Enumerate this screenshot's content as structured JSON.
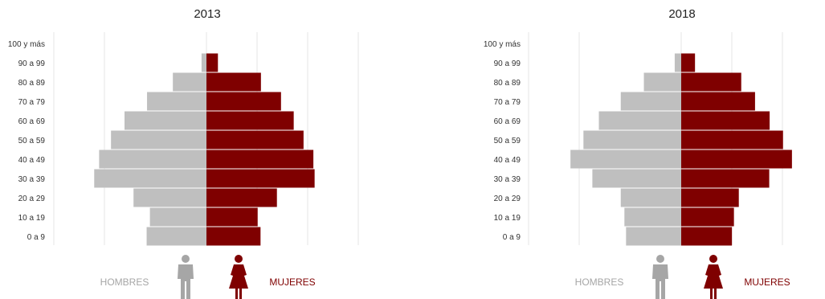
{
  "colors": {
    "men": "#bfbfbf",
    "women": "#7f0000",
    "grid": "#e6e6e6"
  },
  "legend": {
    "men_label": "HOMBRES",
    "women_label": "MUJERES",
    "men_icon": "male-person-icon",
    "women_icon": "female-person-icon"
  },
  "chart_data": [
    {
      "type": "bar",
      "orientation": "horizontal",
      "subtype": "population-pyramid",
      "title": "2013",
      "categories": [
        "100 y más",
        "90 a 99",
        "80 a 89",
        "70 a 79",
        "60 a 69",
        "50 a 59",
        "40 a 49",
        "30 a 39",
        "20 a 29",
        "10 a 19",
        "0 a 9"
      ],
      "series": [
        {
          "name": "HOMBRES",
          "values": [
            0,
            1.2,
            8.2,
            14.5,
            20.0,
            23.3,
            26.2,
            27.4,
            17.8,
            13.8,
            14.6
          ]
        },
        {
          "name": "MUJERES",
          "values": [
            0,
            2.8,
            13.3,
            18.2,
            21.3,
            23.7,
            26.1,
            26.4,
            17.2,
            12.5,
            13.2
          ]
        }
      ],
      "xlim": [
        -37,
        37
      ],
      "grid": true
    },
    {
      "type": "bar",
      "orientation": "horizontal",
      "subtype": "population-pyramid",
      "title": "2018",
      "categories": [
        "100 y más",
        "90 a 99",
        "80 a 89",
        "70 a 79",
        "60 a 69",
        "50 a 59",
        "40 a 49",
        "30 a 39",
        "20 a 29",
        "10 a 19",
        "0 a 9"
      ],
      "series": [
        {
          "name": "HOMBRES",
          "values": [
            0,
            1.6,
            9.2,
            14.9,
            20.3,
            24.1,
            27.3,
            21.9,
            14.9,
            14.0,
            13.6
          ]
        },
        {
          "name": "MUJERES",
          "values": [
            0,
            3.4,
            14.8,
            18.2,
            21.8,
            25.1,
            27.3,
            21.7,
            14.2,
            13.0,
            12.5
          ]
        }
      ],
      "xlim": [
        -25,
        25
      ],
      "grid": true
    }
  ]
}
